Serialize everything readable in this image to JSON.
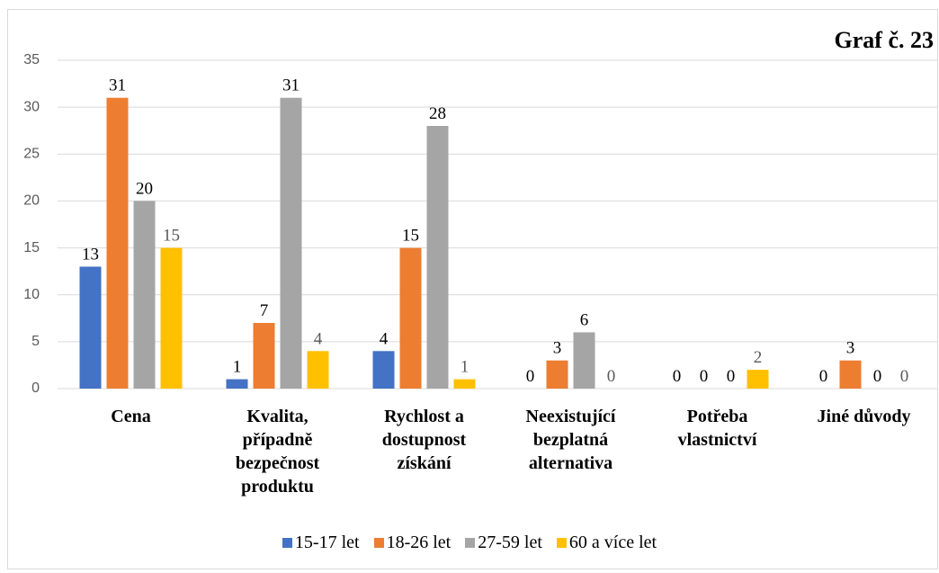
{
  "chart_data": {
    "type": "bar",
    "title": "Graf č. 23",
    "categories": [
      "Cena",
      "Kvalita, případně bezpečnost produktu",
      "Rychlost a dostupnost získání",
      "Neexistující bezplatná alternativa",
      "Potřeba vlastnictví",
      "Jiné důvody"
    ],
    "series": [
      {
        "name": "15-17 let",
        "color": "#4472c4",
        "values": [
          13,
          1,
          4,
          0,
          0,
          0
        ]
      },
      {
        "name": "18-26 let",
        "color": "#ed7d31",
        "values": [
          31,
          7,
          15,
          3,
          0,
          3
        ]
      },
      {
        "name": "27-59 let",
        "color": "#a5a5a5",
        "values": [
          20,
          31,
          28,
          6,
          0,
          0
        ]
      },
      {
        "name": "60 a více let",
        "color": "#ffc000",
        "values": [
          15,
          4,
          1,
          0,
          2,
          0
        ]
      }
    ],
    "ylim": [
      0,
      35
    ],
    "yticks": [
      0,
      5,
      10,
      15,
      20,
      25,
      30,
      35
    ],
    "grid": true,
    "legend": "bottom"
  }
}
